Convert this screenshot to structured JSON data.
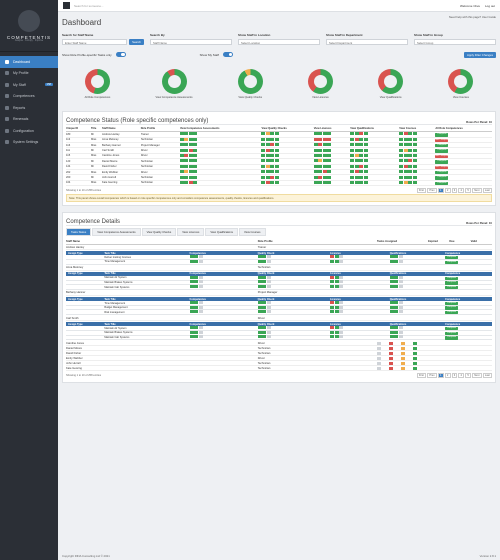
{
  "app": {
    "name": "COMPETENTIS",
    "tagline": "Analyse · Comply · Improve"
  },
  "nav": [
    {
      "label": "Dashboard"
    },
    {
      "label": "My Profile"
    },
    {
      "label": "My Staff",
      "badge": "158"
    },
    {
      "label": "Competences"
    },
    {
      "label": "Reports"
    },
    {
      "label": "Renewals"
    },
    {
      "label": "Configuration"
    },
    {
      "label": "System Settings"
    }
  ],
  "topbar": {
    "search_placeholder": "Search for someone...",
    "welcome": "Welcome Clive",
    "logout": "Log out",
    "help": "Need help with this page?",
    "user_guide": "User Guide"
  },
  "page": {
    "title": "Dashboard"
  },
  "filters": [
    {
      "label": "Search for Staff Name",
      "placeholder": "Enter Staff Name",
      "button": "Search"
    },
    {
      "label": "Search By",
      "value": "Staff Name"
    },
    {
      "label": "Show Staff in Location",
      "value": "Select Location"
    },
    {
      "label": "Show Staff in Department",
      "value": "Select Department"
    },
    {
      "label": "Show Staff in Group",
      "value": "Select Group"
    }
  ],
  "toggles": {
    "role_profile": "Show Role Profile-specific Tasks only",
    "my_staff": "Show My Staff",
    "apply": "Apply Filter Changes"
  },
  "donuts": [
    {
      "label": "All Role Competences",
      "green": 55,
      "color": "#d9534f"
    },
    {
      "label": "View Competence Assessments",
      "green": 90,
      "color": "#d9534f"
    },
    {
      "label": "View Quality Checks",
      "green": 92,
      "color": "#f0ad4e"
    },
    {
      "label": "View Licences",
      "green": 60,
      "color": "#d9534f"
    },
    {
      "label": "View Qualifications",
      "green": 62,
      "color": "#d9534f"
    },
    {
      "label": "View Courses",
      "green": 58,
      "color": "#d9534f"
    }
  ],
  "status": {
    "title": "Competence Status (Role specific competences only)",
    "rows_per_panel": "Rows Per Panel:",
    "rows_value": "10",
    "headers": [
      "Unique ID",
      "Title",
      "Staff Name",
      "Role Profile",
      "View Competence Assessments",
      "View Quality Checks",
      "View Licences",
      "View Qualifications",
      "View Courses",
      "All Role Competences"
    ],
    "rows": [
      [
        "180",
        "Mr",
        "Andrew Hanley",
        "Trainer",
        "Complete"
      ],
      [
        "113",
        "Miss",
        "Anna Meloney",
        "Technician",
        "Not Competent"
      ],
      [
        "116",
        "Miss",
        "Bethany Hanner",
        "Project Manager",
        "Complete"
      ],
      [
        "111",
        "Mr",
        "Carl Smith",
        "Driver",
        "Complete"
      ],
      [
        "115",
        "Miss",
        "Caroline Jones",
        "Driver",
        "Not Competent"
      ],
      [
        "123",
        "Mr",
        "Daniel Moore",
        "Technician",
        "Complete"
      ],
      [
        "124",
        "Mr",
        "David Fisher",
        "Technician",
        "Not Competent"
      ],
      [
        "202",
        "Miss",
        "Emily Webber",
        "Driver",
        "Complete"
      ],
      [
        "200",
        "Mr",
        "John Hurrell",
        "Technician",
        "Complete"
      ],
      [
        "104",
        "Miss",
        "Kate Georing",
        "Technician",
        "Complete"
      ]
    ],
    "showing": "Showing 1 to 10 of 258 entries",
    "pages": [
      "First",
      "Prev",
      "1",
      "2",
      "3",
      "4",
      "5",
      "Next",
      "Last"
    ],
    "note": "Note: This panel shows overall competence which is based on role specific competences only and considers competence assessments, quality checks, licences and qualifications."
  },
  "details": {
    "title": "Competence Details",
    "tabs": [
      "Tasks Status",
      "View Competence Assessments",
      "View Quality Checks",
      "View Licences",
      "View Qualifications",
      "View Courses"
    ],
    "headers": [
      "Staff Name",
      "Role Profile",
      "Tasks Assigned",
      "Expired",
      "Due",
      "Valid"
    ],
    "sub_headers": [
      "Assign Type",
      "Task Title",
      "Competences",
      "Quality Check",
      "Licences",
      "Qualifications",
      "Competence"
    ],
    "people": [
      {
        "name": "Andrew Hanley",
        "role": "Trainer",
        "tasks": [
          [
            "Deliver training Courses",
            "Complete"
          ],
          [
            "Time Management",
            "Complete"
          ]
        ]
      },
      {
        "name": "Anna Meloney",
        "role": "Technician",
        "tasks": [
          [
            "Maintain Air System",
            "Complete"
          ],
          [
            "Maintain Brakes Systems",
            "Complete"
          ],
          [
            "Maintain Cab Systems",
            "Complete"
          ]
        ]
      },
      {
        "name": "Bethany Hanner",
        "role": "Project Manager",
        "tasks": [
          [
            "Time Management",
            "Complete"
          ],
          [
            "Budget Management",
            "Complete"
          ],
          [
            "Risk management",
            "Complete"
          ]
        ]
      },
      {
        "name": "Carl Smith",
        "role": "Driver",
        "tasks": [
          [
            "Maintain Air System",
            "Complete"
          ],
          [
            "Maintain Brakes Systems",
            "Complete"
          ],
          [
            "Maintain Cab Systems",
            "Complete"
          ]
        ]
      }
    ],
    "more": [
      [
        "Caroline Jones",
        "Driver"
      ],
      [
        "Daniel Moore",
        "Technician"
      ],
      [
        "David Fisher",
        "Technician"
      ],
      [
        "Emily Webber",
        "Driver"
      ],
      [
        "John Hurrell",
        "Technician"
      ],
      [
        "Kate Georing",
        "Technician"
      ]
    ],
    "showing": "Showing 1 to 10 of 258 entries"
  },
  "footer": {
    "copyright": "Copyright RINA Consulting Ltd © 2021",
    "version": "Version 2.8.1"
  }
}
